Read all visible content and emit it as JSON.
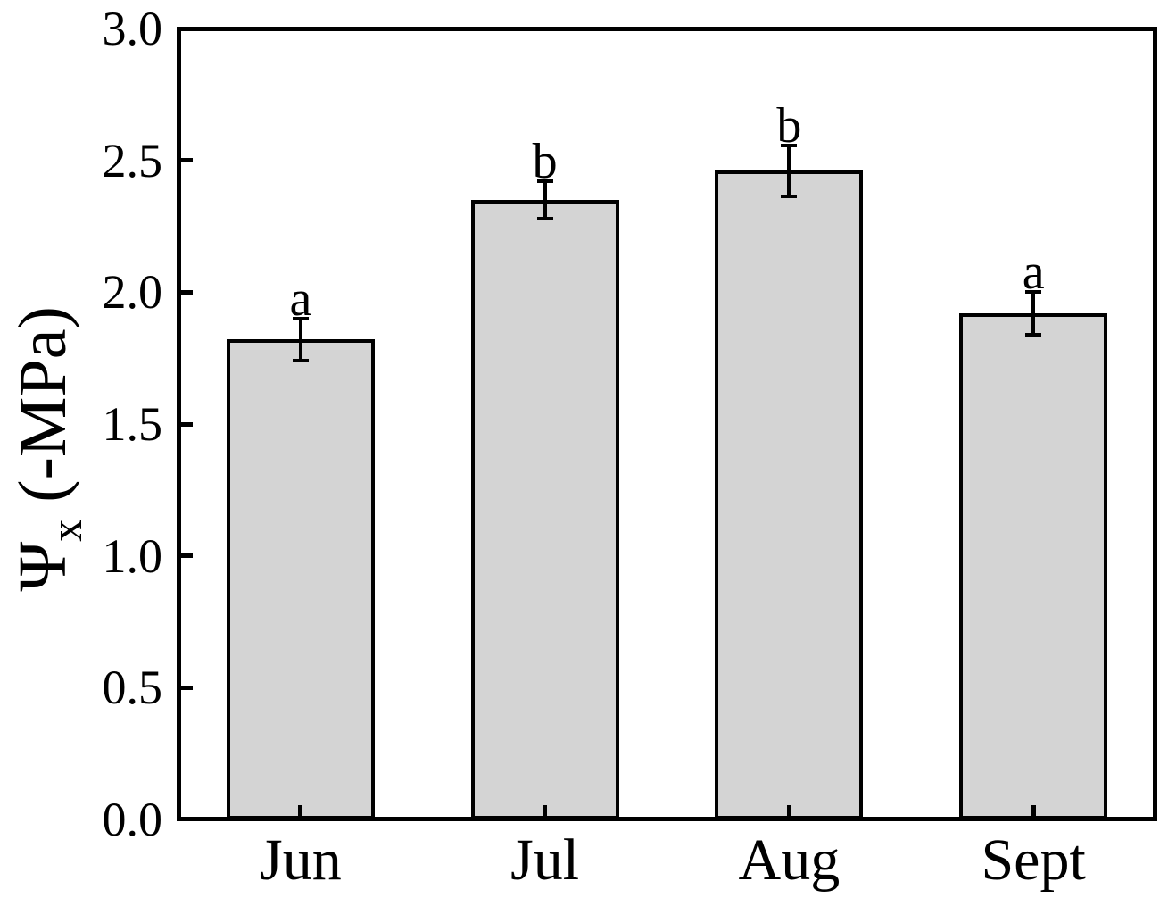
{
  "chart_data": {
    "type": "bar",
    "categories": [
      "Jun",
      "Jul",
      "Aug",
      "Sept"
    ],
    "values": [
      1.82,
      2.35,
      2.46,
      1.92
    ],
    "errors": [
      0.08,
      0.07,
      0.095,
      0.08
    ],
    "sig_letters": [
      "a",
      "b",
      "b",
      "a"
    ],
    "title": "",
    "xlabel": "",
    "ylabel": {
      "symbol": "Ψ",
      "subscript": "x",
      "unit": " (-MPa)"
    },
    "ylim": [
      0.0,
      3.0
    ],
    "ytick_labels": [
      "0.0",
      "0.5",
      "1.0",
      "1.5",
      "2.0",
      "2.5",
      "3.0"
    ],
    "ytick_values": [
      0.0,
      0.5,
      1.0,
      1.5,
      2.0,
      2.5,
      3.0
    ],
    "grid": "off",
    "legend": "none",
    "colors": {
      "bar_fill": "#d4d4d4",
      "bar_stroke": "#000000",
      "axis": "#000000",
      "background": "#ffffff"
    }
  }
}
